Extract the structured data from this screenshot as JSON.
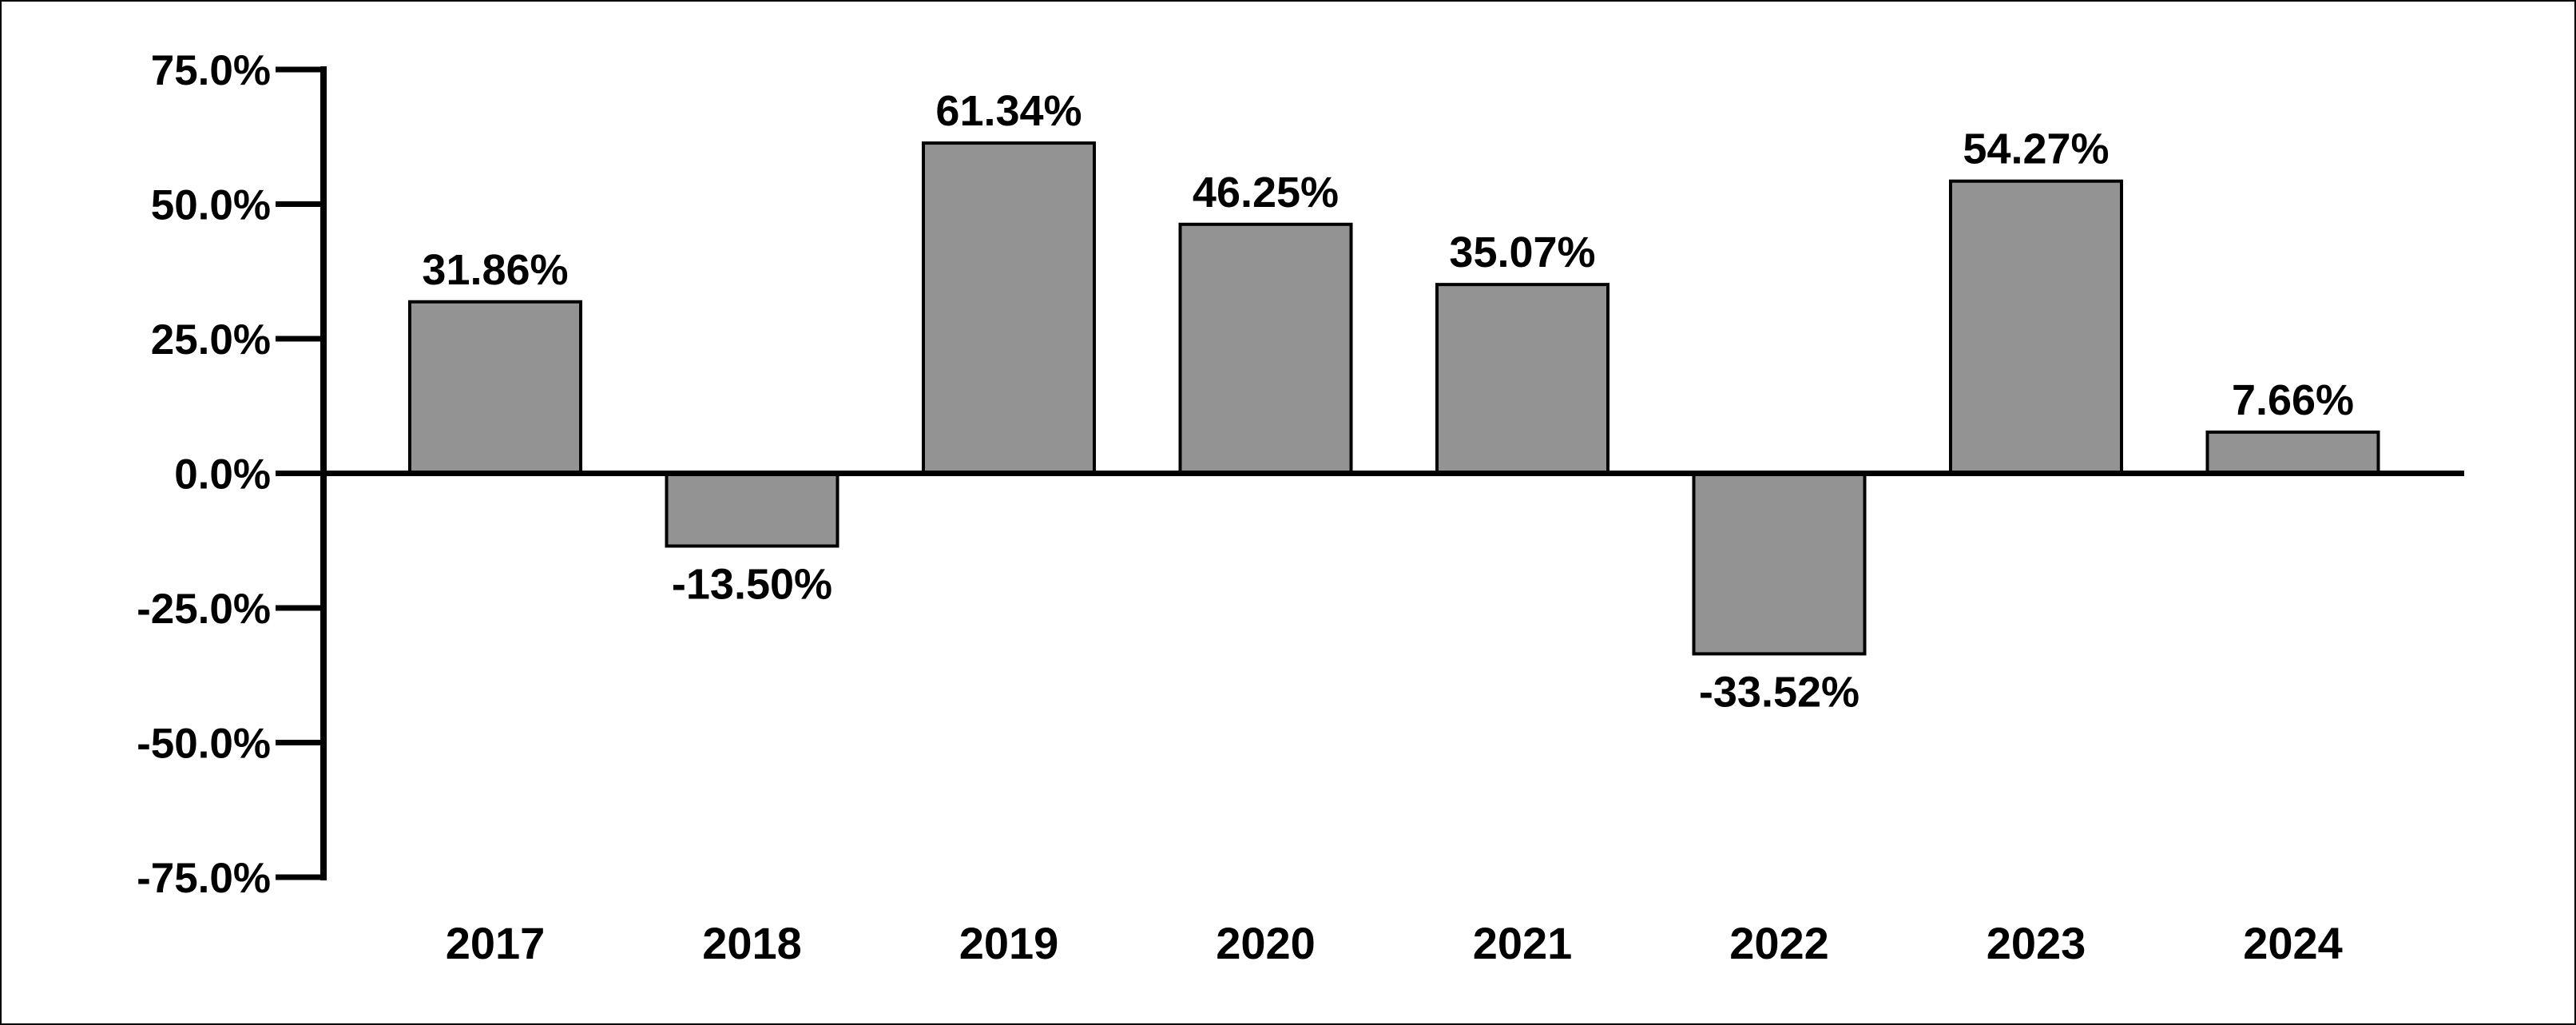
{
  "chart_data": {
    "type": "bar",
    "categories": [
      "2017",
      "2018",
      "2019",
      "2020",
      "2021",
      "2022",
      "2023",
      "2024"
    ],
    "values": [
      31.86,
      -13.5,
      61.34,
      46.25,
      35.07,
      -33.52,
      54.27,
      7.66
    ],
    "value_labels": [
      "31.86%",
      "-13.50%",
      "61.34%",
      "46.25%",
      "35.07%",
      "-33.52%",
      "54.27%",
      "7.66%"
    ],
    "ylim": [
      -75,
      75
    ],
    "yticks": [
      75,
      50,
      25,
      0,
      -25,
      -50,
      -75
    ],
    "ytick_labels": [
      "75.0%",
      "50.0%",
      "25.0%",
      "0.0%",
      "-25.0%",
      "-50.0%",
      "-75.0%"
    ],
    "grid": false,
    "legend": "none",
    "colors": {
      "bar_fill": "#939393",
      "bar_stroke": "#000000",
      "axis": "#000000"
    }
  }
}
